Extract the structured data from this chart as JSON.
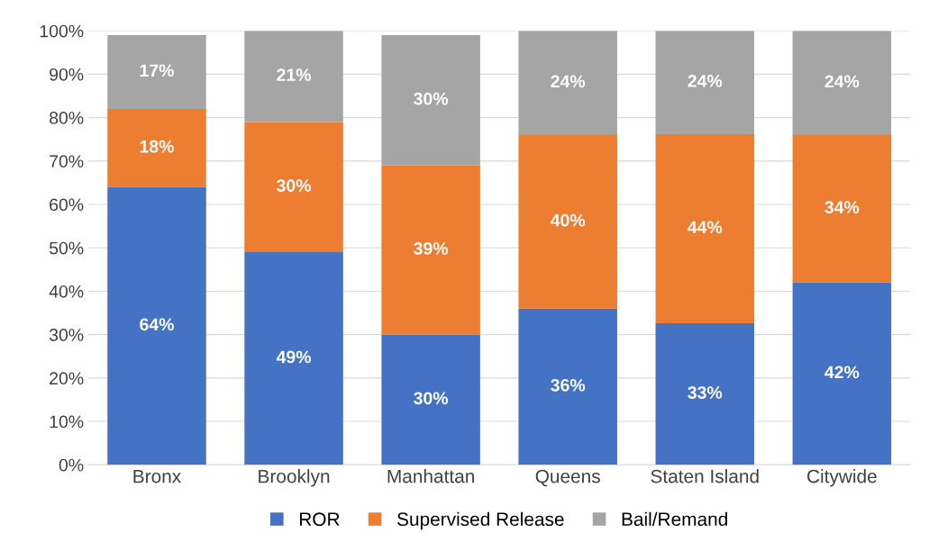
{
  "chart_data": {
    "type": "bar",
    "stacked": true,
    "categories": [
      "Bronx",
      "Brooklyn",
      "Manhattan",
      "Queens",
      "Staten Island",
      "Citywide"
    ],
    "series": [
      {
        "name": "ROR",
        "color": "#4472c4",
        "values": [
          64,
          49,
          30,
          36,
          32.6,
          42
        ],
        "value_labels": [
          "64%",
          "49%",
          "30%",
          "36%",
          "33%",
          "42%"
        ]
      },
      {
        "name": "Supervised Release",
        "color": "#ed7d31",
        "values": [
          18,
          30,
          39,
          40,
          43.6,
          34
        ],
        "value_labels": [
          "18%",
          "30%",
          "39%",
          "40%",
          "44%",
          "34%"
        ]
      },
      {
        "name": "Bail/Remand",
        "color": "#a5a5a5",
        "values": [
          17,
          21,
          30,
          24,
          23.8,
          24
        ],
        "value_labels": [
          "17%",
          "21%",
          "30%",
          "24%",
          "24%",
          "24%"
        ]
      }
    ],
    "ylim": [
      0,
      100
    ],
    "yticks": [
      {
        "value": 0,
        "label": "0%"
      },
      {
        "value": 10,
        "label": "10%"
      },
      {
        "value": 20,
        "label": "20%"
      },
      {
        "value": 30,
        "label": "30%"
      },
      {
        "value": 40,
        "label": "40%"
      },
      {
        "value": 50,
        "label": "50%"
      },
      {
        "value": 60,
        "label": "60%"
      },
      {
        "value": 70,
        "label": "70%"
      },
      {
        "value": 80,
        "label": "80%"
      },
      {
        "value": 90,
        "label": "90%"
      },
      {
        "value": 100,
        "label": "100%"
      }
    ],
    "grid": "y",
    "legend": "bottom"
  }
}
